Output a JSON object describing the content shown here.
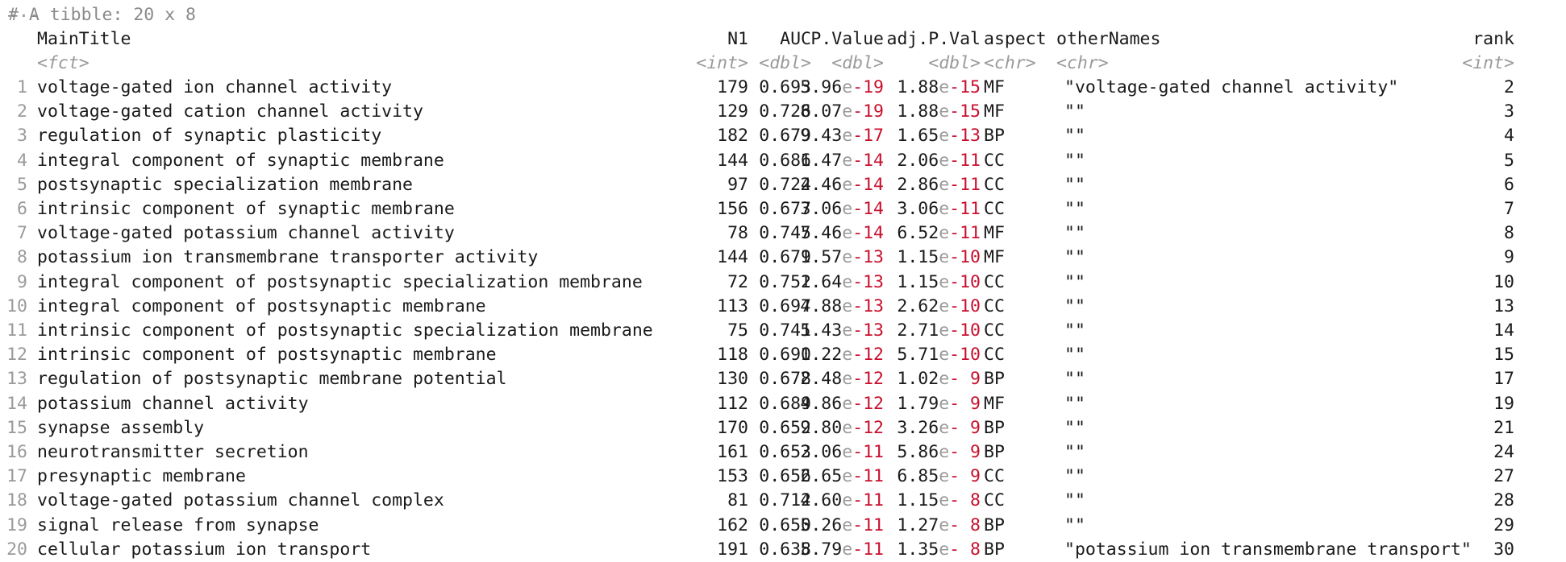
{
  "comment_cut": "...",
  "tibble_comment": "# A tibble: 20 x 8",
  "columns": {
    "maintitle": "MainTitle",
    "n1": "N1",
    "auc": "AUC",
    "pvalue": "P.Value",
    "adjp": "adj.P.Val",
    "aspect": "aspect",
    "othernames": "otherNames",
    "rank": "rank"
  },
  "types": {
    "maintitle": "<fct>",
    "n1": "<int>",
    "auc": "<dbl>",
    "pvalue": "<dbl>",
    "adjp": "<dbl>",
    "aspect": "<chr>",
    "othernames": "<chr>",
    "rank": "<int>"
  },
  "rows": [
    {
      "idx": "1",
      "title": "voltage-gated ion channel activity",
      "n1": "179",
      "auc": "0.693",
      "p_mant": "5.96",
      "p_exp": "-19",
      "a_mant": "1.88",
      "a_exp": "-15",
      "aspect": "MF",
      "other": "\"voltage-gated channel activity\"",
      "rank": "2"
    },
    {
      "idx": "2",
      "title": "voltage-gated cation channel activity",
      "n1": "129",
      "auc": "0.726",
      "p_mant": "8.07",
      "p_exp": "-19",
      "a_mant": "1.88",
      "a_exp": "-15",
      "aspect": "MF",
      "other": "\"\"",
      "rank": "3"
    },
    {
      "idx": "3",
      "title": "regulation of synaptic plasticity",
      "n1": "182",
      "auc": "0.679",
      "p_mant": "9.43",
      "p_exp": "-17",
      "a_mant": "1.65",
      "a_exp": "-13",
      "aspect": "BP",
      "other": "\"\"",
      "rank": "4"
    },
    {
      "idx": "4",
      "title": "integral component of synaptic membrane",
      "n1": "144",
      "auc": "0.686",
      "p_mant": "1.47",
      "p_exp": "-14",
      "a_mant": "2.06",
      "a_exp": "-11",
      "aspect": "CC",
      "other": "\"\"",
      "rank": "5"
    },
    {
      "idx": "5",
      "title": "postsynaptic specialization membrane",
      "n1": "97",
      "auc": "0.724",
      "p_mant": "2.46",
      "p_exp": "-14",
      "a_mant": "2.86",
      "a_exp": "-11",
      "aspect": "CC",
      "other": "\"\"",
      "rank": "6"
    },
    {
      "idx": "6",
      "title": "intrinsic component of synaptic membrane",
      "n1": "156",
      "auc": "0.677",
      "p_mant": "3.06",
      "p_exp": "-14",
      "a_mant": "3.06",
      "a_exp": "-11",
      "aspect": "CC",
      "other": "\"\"",
      "rank": "7"
    },
    {
      "idx": "7",
      "title": "voltage-gated potassium channel activity",
      "n1": "78",
      "auc": "0.745",
      "p_mant": "7.46",
      "p_exp": "-14",
      "a_mant": "6.52",
      "a_exp": "-11",
      "aspect": "MF",
      "other": "\"\"",
      "rank": "8"
    },
    {
      "idx": "8",
      "title": "potassium ion transmembrane transporter activity",
      "n1": "144",
      "auc": "0.679",
      "p_mant": "1.57",
      "p_exp": "-13",
      "a_mant": "1.15",
      "a_exp": "-10",
      "aspect": "MF",
      "other": "\"\"",
      "rank": "9"
    },
    {
      "idx": "9",
      "title": "integral component of postsynaptic specialization membrane",
      "n1": "72",
      "auc": "0.752",
      "p_mant": "1.64",
      "p_exp": "-13",
      "a_mant": "1.15",
      "a_exp": "-10",
      "aspect": "CC",
      "other": "\"\"",
      "rank": "10"
    },
    {
      "idx": "10",
      "title": "integral component of postsynaptic membrane",
      "n1": "113",
      "auc": "0.697",
      "p_mant": "4.88",
      "p_exp": "-13",
      "a_mant": "2.62",
      "a_exp": "-10",
      "aspect": "CC",
      "other": "\"\"",
      "rank": "13"
    },
    {
      "idx": "11",
      "title": "intrinsic component of postsynaptic specialization membrane",
      "n1": "75",
      "auc": "0.741",
      "p_mant": "5.43",
      "p_exp": "-13",
      "a_mant": "2.71",
      "a_exp": "-10",
      "aspect": "CC",
      "other": "\"\"",
      "rank": "14"
    },
    {
      "idx": "12",
      "title": "intrinsic component of postsynaptic membrane",
      "n1": "118",
      "auc": "0.690",
      "p_mant": "1.22",
      "p_exp": "-12",
      "a_mant": "5.71",
      "a_exp": "-10",
      "aspect": "CC",
      "other": "\"\"",
      "rank": "15"
    },
    {
      "idx": "13",
      "title": "regulation of postsynaptic membrane potential",
      "n1": "130",
      "auc": "0.678",
      "p_mant": "2.48",
      "p_exp": "-12",
      "a_mant": "1.02",
      "a_exp": "- 9",
      "aspect": "BP",
      "other": "\"\"",
      "rank": "17"
    },
    {
      "idx": "14",
      "title": "potassium channel activity",
      "n1": "112",
      "auc": "0.689",
      "p_mant": "4.86",
      "p_exp": "-12",
      "a_mant": "1.79",
      "a_exp": "- 9",
      "aspect": "MF",
      "other": "\"\"",
      "rank": "19"
    },
    {
      "idx": "15",
      "title": "synapse assembly",
      "n1": "170",
      "auc": "0.652",
      "p_mant": "9.80",
      "p_exp": "-12",
      "a_mant": "3.26",
      "a_exp": "- 9",
      "aspect": "BP",
      "other": "\"\"",
      "rank": "21"
    },
    {
      "idx": "16",
      "title": "neurotransmitter secretion",
      "n1": "161",
      "auc": "0.653",
      "p_mant": "2.06",
      "p_exp": "-11",
      "a_mant": "5.86",
      "a_exp": "- 9",
      "aspect": "BP",
      "other": "\"\"",
      "rank": "24"
    },
    {
      "idx": "17",
      "title": "presynaptic membrane",
      "n1": "153",
      "auc": "0.656",
      "p_mant": "2.65",
      "p_exp": "-11",
      "a_mant": "6.85",
      "a_exp": "- 9",
      "aspect": "CC",
      "other": "\"\"",
      "rank": "27"
    },
    {
      "idx": "18",
      "title": "voltage-gated potassium channel complex",
      "n1": "81",
      "auc": "0.712",
      "p_mant": "4.60",
      "p_exp": "-11",
      "a_mant": "1.15",
      "a_exp": "- 8",
      "aspect": "CC",
      "other": "\"\"",
      "rank": "28"
    },
    {
      "idx": "19",
      "title": "signal release from synapse",
      "n1": "162",
      "auc": "0.650",
      "p_mant": "5.26",
      "p_exp": "-11",
      "a_mant": "1.27",
      "a_exp": "- 8",
      "aspect": "BP",
      "other": "\"\"",
      "rank": "29"
    },
    {
      "idx": "20",
      "title": "cellular potassium ion transport",
      "n1": "191",
      "auc": "0.638",
      "p_mant": "5.79",
      "p_exp": "-11",
      "a_mant": "1.35",
      "a_exp": "- 8",
      "aspect": "BP",
      "other": "\"potassium ion transmembrane transport\"",
      "rank": "30"
    }
  ]
}
